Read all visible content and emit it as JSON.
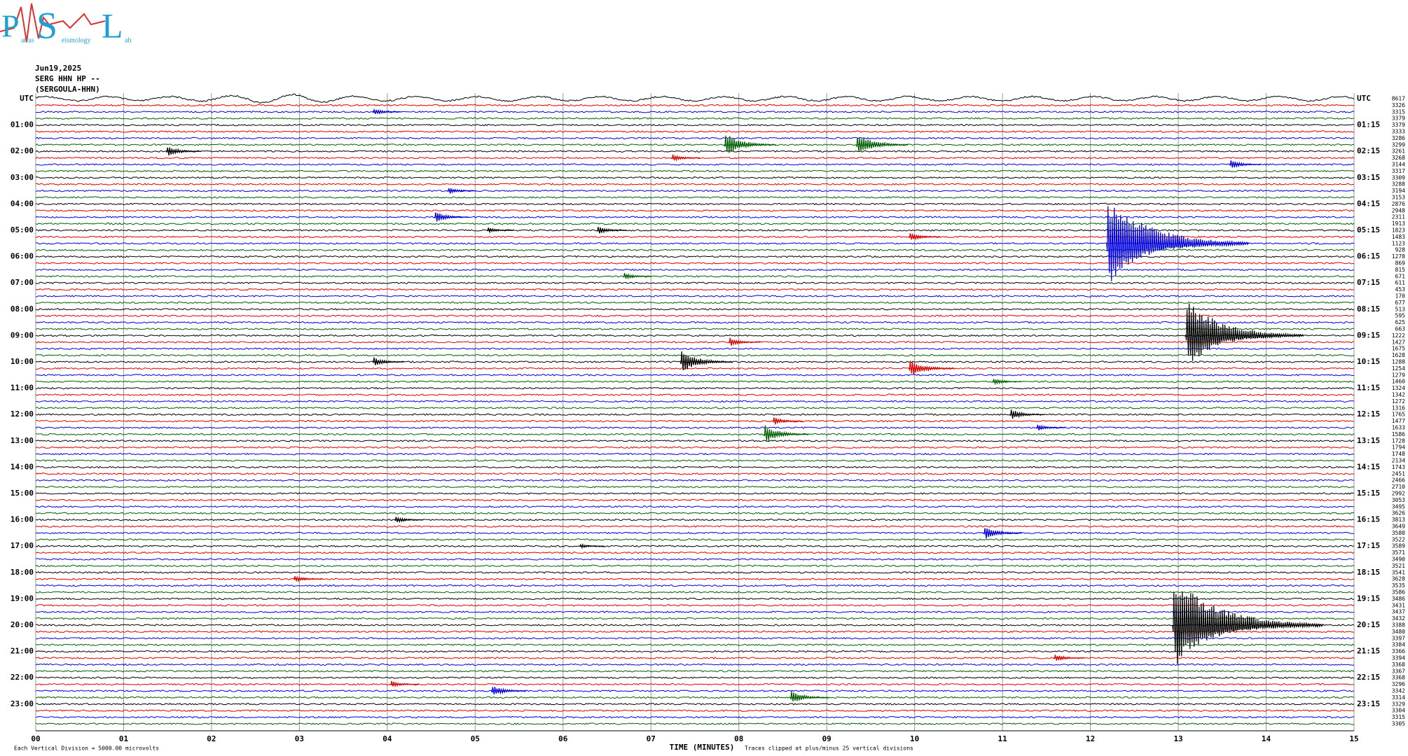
{
  "chart_data": {
    "type": "helicorder",
    "logo": {
      "letters": [
        "P",
        "S",
        "L"
      ],
      "words": [
        "atras",
        "eismology",
        "ab"
      ]
    },
    "header": {
      "date": "Jun19,2025",
      "station": "SERG HHN HP --",
      "location": "(SERGOULA-HHN)"
    },
    "left_labels": [
      "UTC",
      "01:00",
      "02:00",
      "03:00",
      "04:00",
      "05:00",
      "06:00",
      "07:00",
      "08:00",
      "09:00",
      "10:00",
      "11:00",
      "12:00",
      "13:00",
      "14:00",
      "15:00",
      "16:00",
      "17:00",
      "18:00",
      "19:00",
      "20:00",
      "21:00",
      "22:00",
      "23:00"
    ],
    "right_labels": [
      "UTC",
      "01:15",
      "02:15",
      "03:15",
      "04:15",
      "05:15",
      "06:15",
      "07:15",
      "08:15",
      "09:15",
      "10:15",
      "11:15",
      "12:15",
      "13:15",
      "14:15",
      "15:15",
      "16:15",
      "17:15",
      "18:15",
      "19:15",
      "20:15",
      "21:15",
      "22:15",
      "23:15"
    ],
    "trace_colors": [
      "#000000",
      "#e00000",
      "#0000e0",
      "#006000"
    ],
    "trace_counts": [
      8617,
      3326,
      3315,
      3379,
      3379,
      3333,
      3286,
      3299,
      3261,
      3268,
      3144,
      3317,
      3309,
      3288,
      3194,
      3153,
      2876,
      2948,
      2311,
      1913,
      1823,
      1483,
      1123,
      928,
      1278,
      869,
      815,
      671,
      611,
      453,
      170,
      677,
      513,
      595,
      625,
      663,
      1222,
      1427,
      1675,
      1628,
      1288,
      1254,
      1279,
      1460,
      1324,
      1342,
      1272,
      1316,
      1765,
      1477,
      1633,
      1586,
      1728,
      1794,
      1748,
      2134,
      1743,
      2451,
      2466,
      2710,
      2992,
      3053,
      3495,
      3626,
      3813,
      3649,
      3580,
      3522,
      3589,
      3571,
      3490,
      3521,
      3541,
      3628,
      3535,
      3586,
      3486,
      3431,
      3437,
      3432,
      3388,
      3480,
      3397,
      3384,
      3366,
      3394,
      3368,
      3367,
      3368,
      3296,
      3342,
      3314,
      3329,
      3304,
      3315,
      3305
    ],
    "xlim": [
      0,
      15
    ],
    "xticks": [
      {
        "value": 0,
        "label": "00"
      },
      {
        "value": 1,
        "label": "01"
      },
      {
        "value": 2,
        "label": "02"
      },
      {
        "value": 3,
        "label": "03"
      },
      {
        "value": 4,
        "label": "04"
      },
      {
        "value": 5,
        "label": "05"
      },
      {
        "value": 6,
        "label": "06"
      },
      {
        "value": 7,
        "label": "07"
      },
      {
        "value": 8,
        "label": "08"
      },
      {
        "value": 9,
        "label": "09"
      },
      10,
      11,
      12,
      13,
      14,
      15
    ],
    "x_label": "TIME (MINUTES)",
    "footer_left": "Each Vertical Division = 5000.00 microvolts",
    "footer_right": "Traces clipped at plus/minus 25 vertical divisions",
    "events": [
      {
        "line": 2,
        "minute": 3.85,
        "amplitude": 0.6
      },
      {
        "line": 7,
        "minute": 7.85,
        "amplitude": 2
      },
      {
        "line": 7,
        "minute": 9.35,
        "amplitude": 2
      },
      {
        "line": 8,
        "minute": 1.5,
        "amplitude": 1
      },
      {
        "line": 9,
        "minute": 7.25,
        "amplitude": 0.6
      },
      {
        "line": 10,
        "minute": 13.6,
        "amplitude": 0.8
      },
      {
        "line": 14,
        "minute": 4.7,
        "amplitude": 0.6
      },
      {
        "line": 18,
        "minute": 4.55,
        "amplitude": 1
      },
      {
        "line": 20,
        "minute": 5.15,
        "amplitude": 0.5
      },
      {
        "line": 20,
        "minute": 6.4,
        "amplitude": 0.7
      },
      {
        "line": 21,
        "minute": 9.95,
        "amplitude": 0.8
      },
      {
        "line": 22,
        "minute": 12.2,
        "amplitude": 7.5
      },
      {
        "line": 27,
        "minute": 6.7,
        "amplitude": 0.6
      },
      {
        "line": 36,
        "minute": 13.1,
        "amplitude": 6
      },
      {
        "line": 37,
        "minute": 7.9,
        "amplitude": 0.8
      },
      {
        "line": 40,
        "minute": 7.35,
        "amplitude": 2
      },
      {
        "line": 40,
        "minute": 3.85,
        "amplitude": 0.8
      },
      {
        "line": 41,
        "minute": 9.95,
        "amplitude": 1.6
      },
      {
        "line": 43,
        "minute": 10.9,
        "amplitude": 0.6
      },
      {
        "line": 48,
        "minute": 11.1,
        "amplitude": 1
      },
      {
        "line": 49,
        "minute": 8.4,
        "amplitude": 0.7
      },
      {
        "line": 50,
        "minute": 11.4,
        "amplitude": 0.6
      },
      {
        "line": 51,
        "minute": 8.3,
        "amplitude": 1.6
      },
      {
        "line": 64,
        "minute": 4.1,
        "amplitude": 0.6
      },
      {
        "line": 66,
        "minute": 10.8,
        "amplitude": 1.2
      },
      {
        "line": 68,
        "minute": 6.2,
        "amplitude": 0.4
      },
      {
        "line": 73,
        "minute": 2.95,
        "amplitude": 0.6
      },
      {
        "line": 80,
        "minute": 12.95,
        "amplitude": 8
      },
      {
        "line": 85,
        "minute": 11.6,
        "amplitude": 0.7
      },
      {
        "line": 89,
        "minute": 4.05,
        "amplitude": 0.6
      },
      {
        "line": 90,
        "minute": 5.2,
        "amplitude": 1
      },
      {
        "line": 91,
        "minute": 8.6,
        "amplitude": 1.2
      }
    ]
  }
}
